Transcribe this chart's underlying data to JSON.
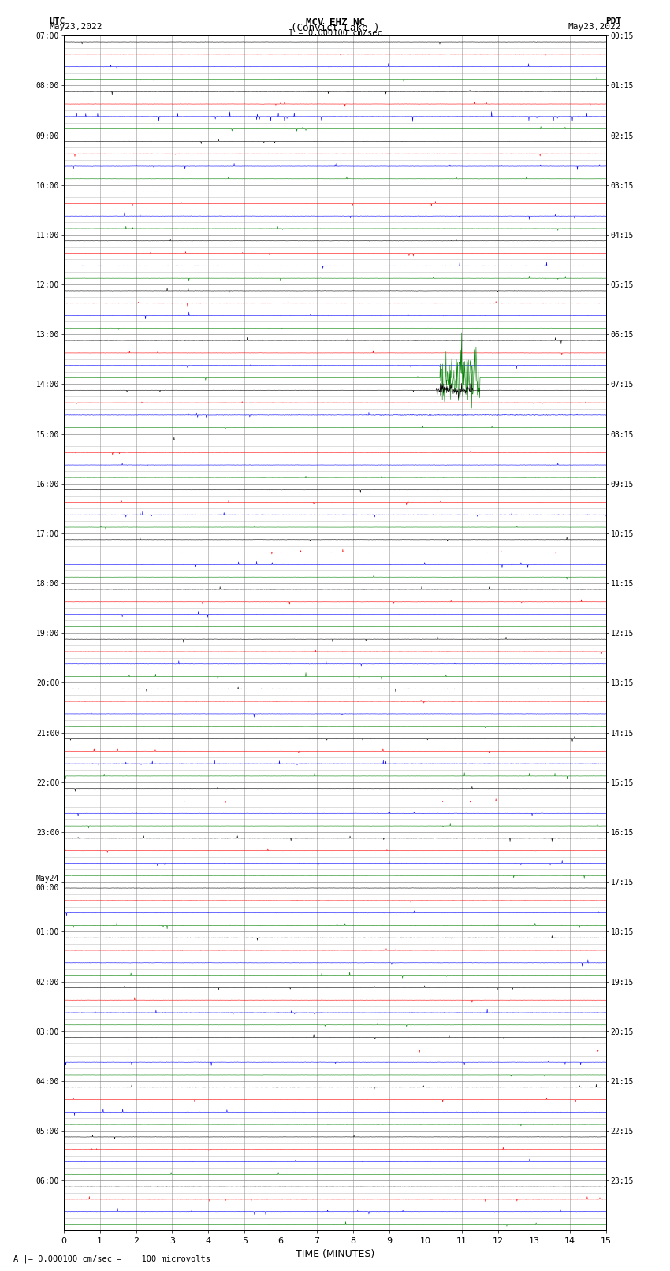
{
  "title_line1": "MCV EHZ NC",
  "title_line2": "(Convict Lake )",
  "scale_label": "I = 0.000100 cm/sec",
  "label_utc": "UTC",
  "label_utc_date": "May23,2022",
  "label_pdt": "PDT",
  "label_pdt_date": "May23,2022",
  "xlabel": "TIME (MINUTES)",
  "footer": "A |= 0.000100 cm/sec =    100 microvolts",
  "left_times": [
    "07:00",
    "08:00",
    "09:00",
    "10:00",
    "11:00",
    "12:00",
    "13:00",
    "14:00",
    "15:00",
    "16:00",
    "17:00",
    "18:00",
    "19:00",
    "20:00",
    "21:00",
    "22:00",
    "23:00",
    "May24\n00:00",
    "01:00",
    "02:00",
    "03:00",
    "04:00",
    "05:00",
    "06:00"
  ],
  "right_times": [
    "00:15",
    "01:15",
    "02:15",
    "03:15",
    "04:15",
    "05:15",
    "06:15",
    "07:15",
    "08:15",
    "09:15",
    "10:15",
    "11:15",
    "12:15",
    "13:15",
    "14:15",
    "15:15",
    "16:15",
    "17:15",
    "18:15",
    "19:15",
    "20:15",
    "21:15",
    "22:15",
    "23:15"
  ],
  "n_rows": 24,
  "n_traces_per_row": 4,
  "trace_colors": [
    "black",
    "red",
    "blue",
    "green"
  ],
  "bg_color": "#ffffff",
  "grid_color": "#888888",
  "x_min": 0,
  "x_max": 15,
  "x_ticks": [
    0,
    1,
    2,
    3,
    4,
    5,
    6,
    7,
    8,
    9,
    10,
    11,
    12,
    13,
    14,
    15
  ],
  "noise_seed": 12345
}
